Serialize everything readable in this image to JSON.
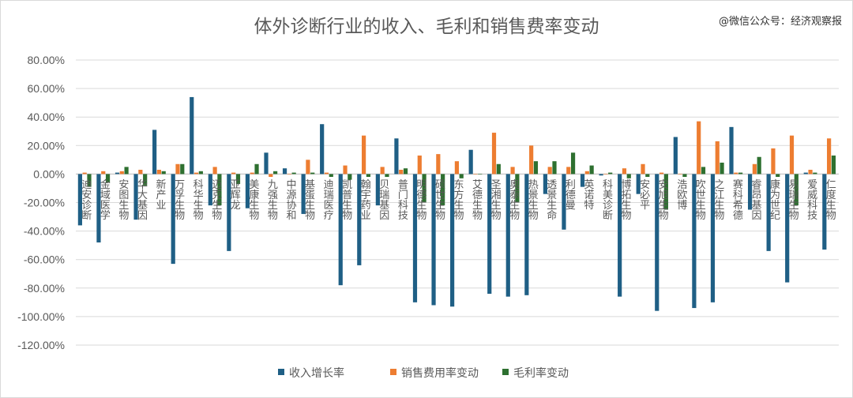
{
  "watermark": "@微信公众号：经济观察报",
  "colors": {
    "revenue": "#1f5f85",
    "selling": "#ed7d31",
    "gross": "#2e7030",
    "grid": "#d9d9d9",
    "text": "#595959"
  },
  "chart_data": {
    "type": "bar",
    "title": "体外诊断行业的收入、毛利和销售费率变动",
    "ylim": [
      -120,
      80
    ],
    "yticks": [
      "80.00%",
      "60.00%",
      "40.00%",
      "20.00%",
      "0.00%",
      "-20.00%",
      "-40.00%",
      "-60.00%",
      "-80.00%",
      "-100.00%",
      "-120.00%"
    ],
    "ytick_values": [
      80,
      60,
      40,
      20,
      0,
      -20,
      -40,
      -60,
      -80,
      -100,
      -120
    ],
    "grid": true,
    "legend_position": "bottom",
    "categories": [
      "迪安诊断",
      "金域医学",
      "安图生物",
      "华大基因",
      "新产业",
      "万孚生物",
      "科华生物",
      "迈克生物",
      "亚辉龙",
      "美康生物",
      "九强生物",
      "中源协和",
      "基蛋生物",
      "迪瑞医疗",
      "凯普生物",
      "翰宇药业",
      "贝瑞基因",
      "普门科技",
      "明德生物",
      "硕世生物",
      "东方生物",
      "艾德生物",
      "圣湘生物",
      "奥泰生物",
      "热景生物",
      "透景生命",
      "利德曼",
      "英诺特",
      "科美诊断",
      "博拓生物",
      "安必平",
      "安旭生物",
      "浩欧博",
      "吹世生物",
      "之江生物",
      "赛科希德",
      "睿昂基因",
      "康为世纪",
      "易瑞生物",
      "爱威科技",
      "仁度生物"
    ],
    "series": [
      {
        "name": "收入增长率",
        "values": [
          -36,
          -48,
          1,
          -32,
          31,
          -63,
          54,
          -22,
          -54,
          -24,
          15,
          4,
          -28,
          35,
          -78,
          -64,
          -22,
          25,
          -90,
          -92,
          -93,
          17,
          -84,
          -86,
          -85,
          -14,
          -39,
          -9,
          -1,
          -86,
          -14,
          -96,
          26,
          -94,
          -90,
          33,
          -25,
          -54,
          -76,
          1,
          -53
        ]
      },
      {
        "name": "销售费用率变动",
        "values": [
          1,
          2,
          2,
          3,
          3,
          7,
          1,
          5,
          1,
          1,
          -2,
          0,
          10,
          1,
          6,
          27,
          5,
          3,
          13,
          14,
          9,
          0,
          29,
          5,
          20,
          5,
          5,
          2,
          0,
          4,
          7,
          1,
          0,
          37,
          23,
          1,
          7,
          18,
          27,
          3,
          25
        ]
      },
      {
        "name": "毛利率变动",
        "values": [
          -9,
          -6,
          5,
          -8,
          2,
          7,
          2,
          -22,
          -7,
          7,
          2,
          1,
          1,
          -2,
          -4,
          -2,
          -2,
          4,
          -20,
          -22,
          -3,
          0,
          7,
          -20,
          9,
          9,
          15,
          6,
          1,
          -3,
          -2,
          -25,
          -2,
          5,
          8,
          1,
          12,
          -2,
          -22,
          1,
          13
        ]
      }
    ]
  }
}
